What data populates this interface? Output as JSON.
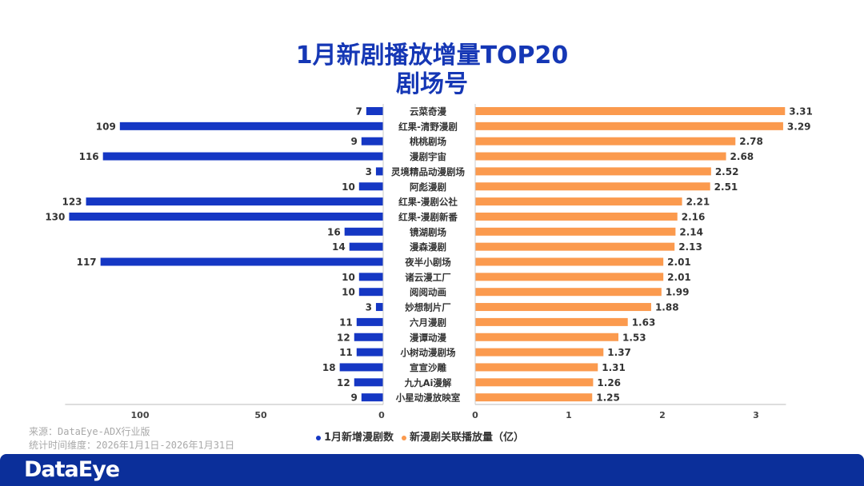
{
  "chart_data": {
    "type": "bar",
    "title": "1月新剧播放增量TOP20",
    "subtitle": "剧场号",
    "categories": [
      "云菜奇漫",
      "红果-清野漫剧",
      "桃桃剧场",
      "漫剧宇宙",
      "灵境精品动漫剧场",
      "阿彪漫剧",
      "红果-漫剧公社",
      "红果-漫剧新番",
      "镜湖剧场",
      "漫森漫剧",
      "夜半小剧场",
      "诸云漫工厂",
      "阅阅动画",
      "妙想制片厂",
      "六月漫剧",
      "漫谭动漫",
      "小树动漫剧场",
      "宣宣沙雕",
      "九九Ai漫解",
      "小星动漫放映室"
    ],
    "series": [
      {
        "name": "1月新增漫剧数",
        "color": "#1537c4",
        "values": [
          7,
          109,
          9,
          116,
          3,
          10,
          123,
          130,
          16,
          14,
          117,
          10,
          10,
          3,
          11,
          12,
          11,
          18,
          12,
          9
        ],
        "xlim": [
          0,
          130
        ],
        "ticks": [
          100,
          50,
          0
        ],
        "direction": "left"
      },
      {
        "name": "新漫剧关联播放量（亿）",
        "color": "#fb9a4e",
        "values": [
          3.31,
          3.29,
          2.78,
          2.68,
          2.52,
          2.51,
          2.21,
          2.16,
          2.14,
          2.13,
          2.01,
          2.01,
          1.99,
          1.88,
          1.63,
          1.53,
          1.37,
          1.31,
          1.26,
          1.25
        ],
        "xlim": [
          0,
          3.31
        ],
        "ticks": [
          0,
          1,
          2,
          3
        ],
        "direction": "right"
      }
    ],
    "legend_position": "bottom",
    "grid": false
  },
  "source": "来源：DataEye-ADX行业版",
  "period": "统计时间维度：2026年1月1日-2026年1月31日",
  "logo": "DataEye"
}
